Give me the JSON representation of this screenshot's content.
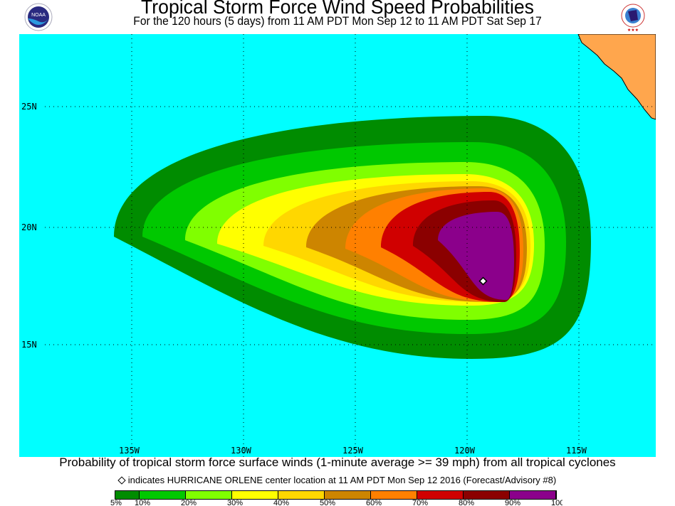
{
  "header": {
    "title": "Tropical Storm Force Wind Speed Probabilities",
    "subtitle": "For the 120 hours (5 days) from 11 AM PDT Mon Sep 12 to 11 AM PDT Sat Sep 17",
    "left_logo": "NOAA",
    "right_logo": "NATIONAL WEATHER SERVICE"
  },
  "map": {
    "ocean_color": "#00ffff",
    "land_color": "#ffa64d",
    "lat_labels": [
      "25N",
      "20N",
      "15N"
    ],
    "lon_labels": [
      "135W",
      "130W",
      "125W",
      "120W",
      "115W"
    ],
    "storm_marker": "diamond-icon"
  },
  "footer": {
    "caption": "Probability of tropical storm force surface winds (1-minute average >= 39 mph) from all tropical cyclones",
    "note": "indicates HURRICANE ORLENE center location at 11 AM PDT Mon Sep 12 2016 (Forecast/Advisory #8)"
  },
  "legend": {
    "colors": [
      "#008c00",
      "#00c800",
      "#80ff00",
      "#ffff00",
      "#ffd700",
      "#cd8500",
      "#ff8000",
      "#d00000",
      "#8b0000",
      "#8b008b"
    ],
    "labels": [
      "5%",
      "10%",
      "20%",
      "30%",
      "40%",
      "50%",
      "60%",
      "70%",
      "80%",
      "90%",
      "100%"
    ]
  }
}
